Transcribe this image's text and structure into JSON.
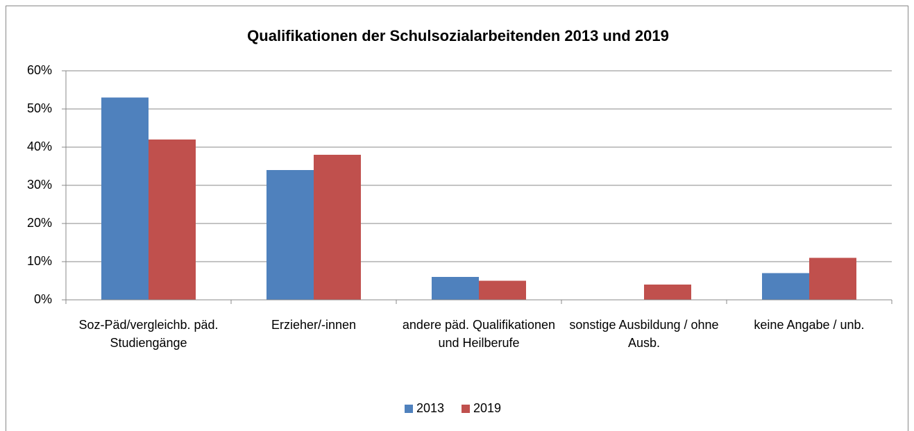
{
  "chart_data": {
    "type": "bar",
    "title": "Qualifikationen der Schulsozialarbeitenden 2013 und 2019",
    "categories": [
      "Soz-Päd/vergleichb. päd. Studiengänge",
      "Erzieher/-innen",
      "andere päd. Qualifikationen und Heilberufe",
      "sonstige Ausbildung / ohne Ausb.",
      "keine Angabe / unb."
    ],
    "series": [
      {
        "name": "2013",
        "color": "#4f81bd",
        "values": [
          53,
          34,
          6,
          0,
          7
        ]
      },
      {
        "name": "2019",
        "color": "#c0504d",
        "values": [
          42,
          38,
          5,
          4,
          11
        ]
      }
    ],
    "ylim": [
      0,
      60
    ],
    "yticks": [
      {
        "value": 0,
        "label": "0%"
      },
      {
        "value": 10,
        "label": "10%"
      },
      {
        "value": 20,
        "label": "20%"
      },
      {
        "value": 30,
        "label": "30%"
      },
      {
        "value": 40,
        "label": "40%"
      },
      {
        "value": 50,
        "label": "50%"
      },
      {
        "value": 60,
        "label": "60%"
      }
    ],
    "grid": true,
    "legend": "bottom"
  }
}
